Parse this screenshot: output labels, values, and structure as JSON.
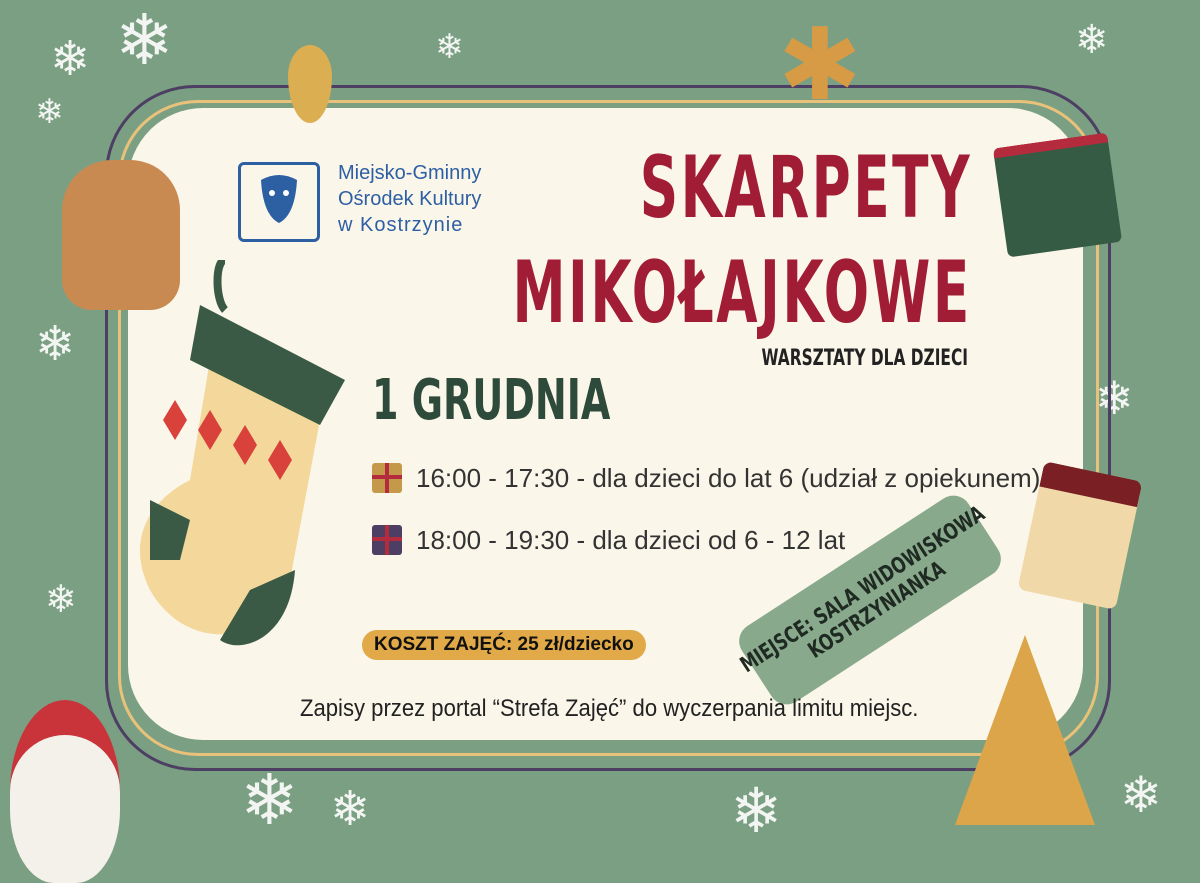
{
  "organizer": {
    "lines": [
      "Miejsko-Gminny",
      "Ośrodek Kultury",
      "w  Kostrzynie"
    ]
  },
  "title": {
    "line1": "SKARPETY",
    "line2": "MIKOŁAJKOWE",
    "subtitle": "WARSZTATY DLA DZIECI"
  },
  "date": "1 GRUDNIA",
  "sessions": [
    {
      "icon": "gift-icon",
      "text": "16:00 - 17:30 - dla dzieci do lat 6 (udział z opiekunem)"
    },
    {
      "icon": "gift-icon",
      "text": "18:00 - 19:30 - dla dzieci od 6 - 12 lat"
    }
  ],
  "cost": "KOSZT ZAJĘĆ: 25 zł/dziecko",
  "place": {
    "line1": "MIEJSCE: SALA WIDOWISKOWA",
    "line2": "KOSTRZYNIANKA"
  },
  "signup": "Zapisy przez portal “Strefa Zajęć” do wyczerpania limitu miejsc.",
  "colors": {
    "background": "#7b9f82",
    "panel": "#fbf6ea",
    "title": "#a11d36",
    "date": "#2e4a3a",
    "cost_badge": "#e1a948",
    "place_badge": "#89a98c"
  }
}
